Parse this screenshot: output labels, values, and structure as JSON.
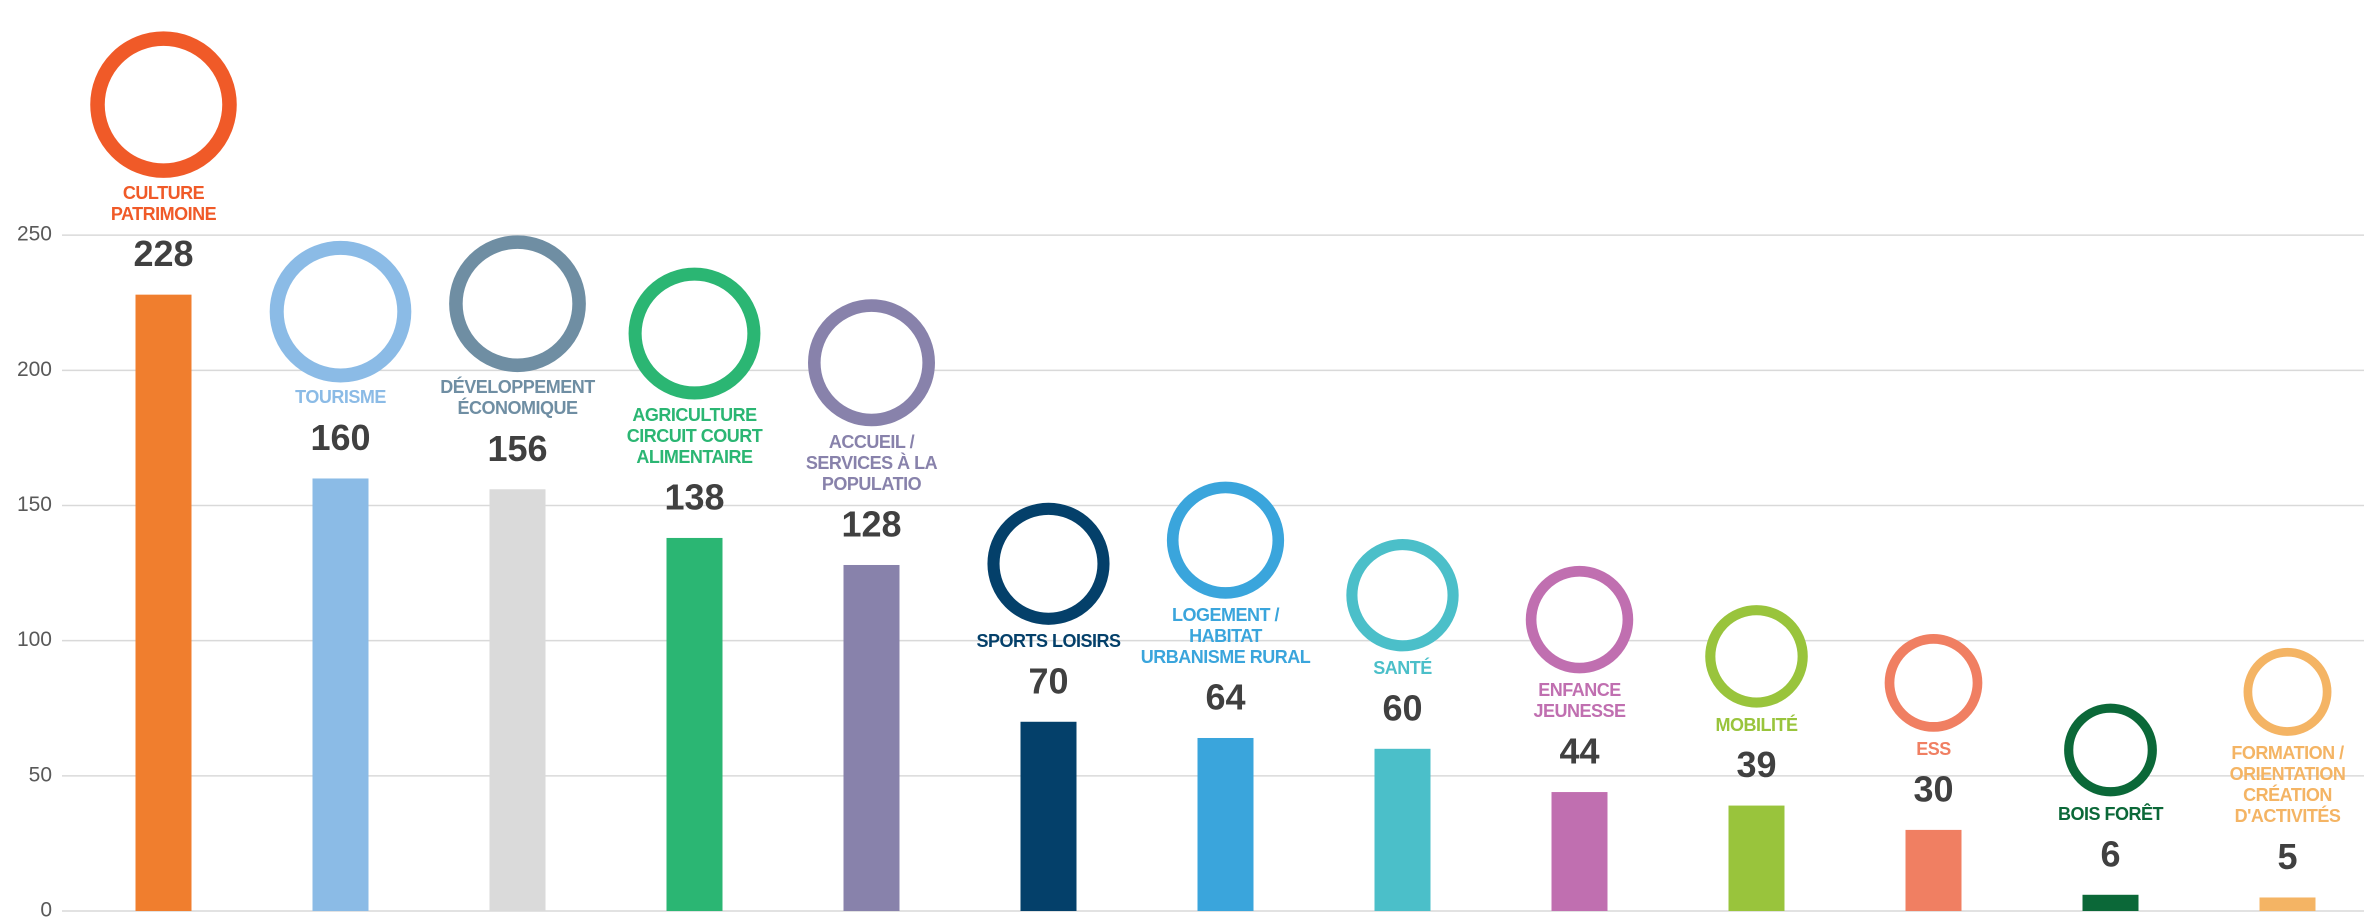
{
  "chart_data": {
    "type": "bar",
    "categories": [
      "CULTURE PATRIMOINE",
      "TOURISME",
      "DÉVELOPPEMENT ÉCONOMIQUE",
      "AGRICULTURE CIRCUIT COURT ALIMENTAIRE",
      "ACCUEIL / SERVICES À LA POPULATIO",
      "SPORTS LOISIRS",
      "LOGEMENT / HABITAT URBANISME RURAL",
      "SANTÉ",
      "ENFANCE JEUNESSE",
      "MOBILITÉ",
      "ESS",
      "BOIS FORÊT",
      "FORMATION / ORIENTATION CRÉATION D'ACTIVITÉS"
    ],
    "values": [
      228,
      160,
      156,
      138,
      128,
      70,
      64,
      60,
      44,
      39,
      30,
      6,
      5
    ],
    "colors": [
      "#f07e2e",
      "#8bbbe6",
      "#dadada",
      "#2bb673",
      "#8882ab",
      "#04406a",
      "#3aa5dc",
      "#4bbfc9",
      "#c06fb0",
      "#99c43c",
      "#f07f62",
      "#0b6838",
      "#f4b464"
    ],
    "label_colors": [
      "#f05a28",
      "#8bbbe6",
      "#6f8ea3",
      "#2bb673",
      "#8882ab",
      "#04406a",
      "#3aa5dc",
      "#4bbfc9",
      "#c06fb0",
      "#99c43c",
      "#f07f62",
      "#0b6838",
      "#f4b464"
    ],
    "ylim": [
      0,
      337
    ],
    "yticks": [
      0,
      50,
      100,
      150,
      200,
      250
    ],
    "grid": true
  }
}
